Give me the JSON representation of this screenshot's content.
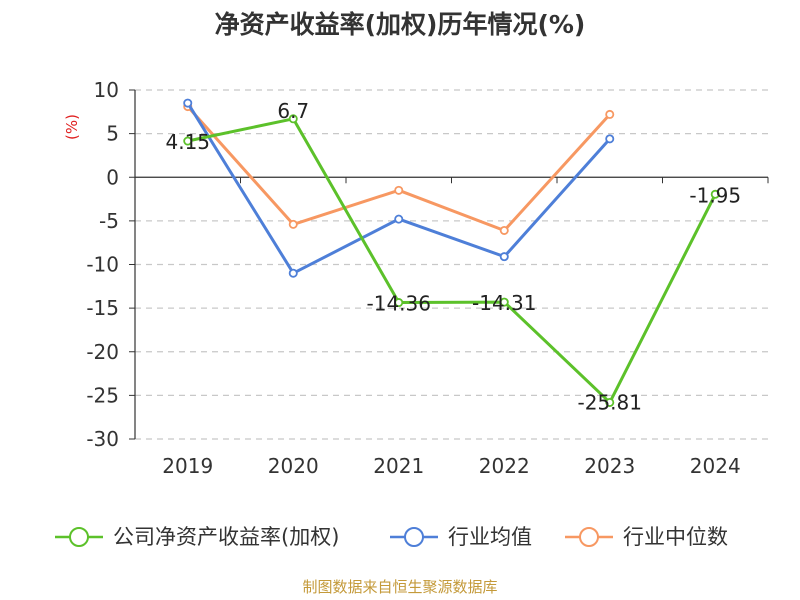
{
  "chart_data": {
    "type": "line",
    "title": "净资产收益率(加权)历年情况(%)",
    "ylabel": "(%)",
    "categories": [
      "2019",
      "2020",
      "2021",
      "2022",
      "2023",
      "2024"
    ],
    "ylim": [
      -30,
      10
    ],
    "yticks": [
      10,
      5,
      0,
      -5,
      -10,
      -15,
      -20,
      -25,
      -30
    ],
    "grid": true,
    "legend_position": "bottom",
    "series": [
      {
        "name": "公司净资产收益率(加权)",
        "color": "#5cc12a",
        "values": [
          4.15,
          6.7,
          -14.36,
          -14.31,
          -25.81,
          -1.95
        ],
        "labels": [
          "4.15",
          "6.7",
          "-14.36",
          "-14.31",
          "-25.81",
          "-1.95"
        ]
      },
      {
        "name": "行业均值",
        "color": "#4e7fd8",
        "values": [
          8.5,
          -11.0,
          -4.8,
          -9.1,
          4.4,
          null
        ]
      },
      {
        "name": "行业中位数",
        "color": "#f79862",
        "values": [
          8.1,
          -5.4,
          -1.5,
          -6.1,
          7.2,
          null
        ]
      }
    ]
  },
  "source": "制图数据来自恒生聚源数据库"
}
